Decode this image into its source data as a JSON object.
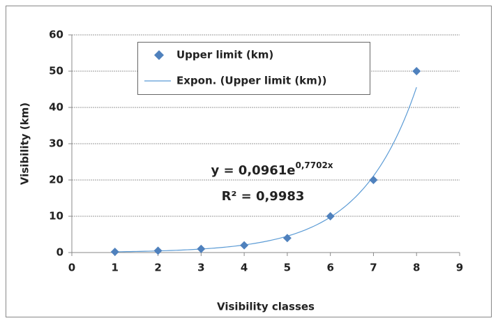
{
  "chart_data": {
    "type": "scatter",
    "x_label": "Visibility classes",
    "y_label": "Visibility (km)",
    "series": [
      {
        "name": "Upper limit (km)",
        "color": "#4f81bd",
        "x": [
          1,
          2,
          3,
          4,
          5,
          6,
          7,
          8
        ],
        "values": [
          0.2,
          0.5,
          1,
          2,
          4,
          10,
          20,
          50
        ]
      }
    ],
    "trendline": {
      "name": "Expon. (Upper limit (km))",
      "color": "#5b9bd5",
      "a": 0.0961,
      "b": 0.7702,
      "equation_base": "y = 0,0961e",
      "equation_exponent": "0,7702x",
      "r_squared": "R² = 0,9983"
    },
    "xlim": [
      0,
      9
    ],
    "xticks": [
      0,
      1,
      2,
      3,
      4,
      5,
      6,
      7,
      8,
      9
    ],
    "ylim": [
      0,
      60
    ],
    "yticks": [
      0,
      10,
      20,
      30,
      40,
      50,
      60
    ],
    "grid": true
  }
}
